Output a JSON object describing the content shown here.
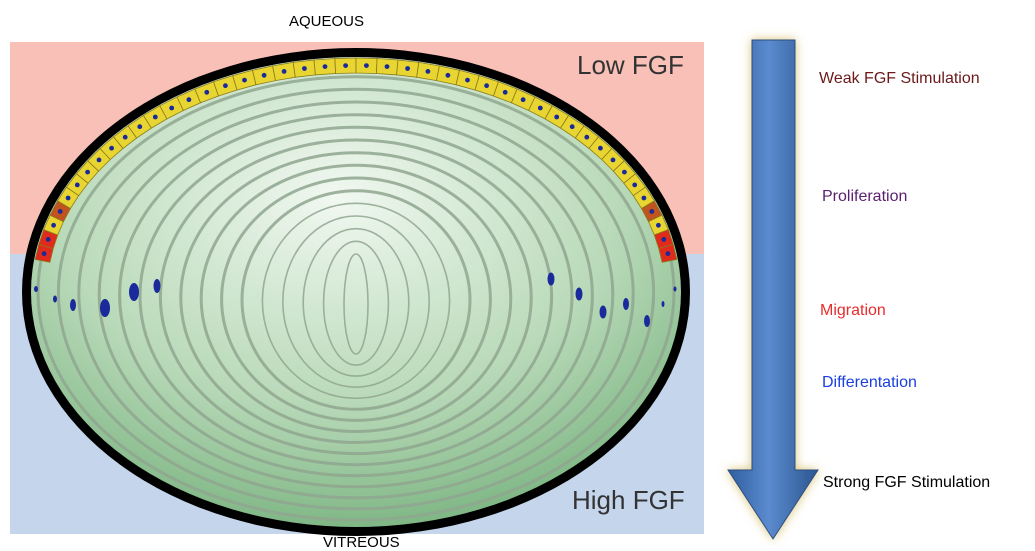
{
  "labels": {
    "aqueous": "AQUEOUS",
    "vitreous": "VITREOUS",
    "low_fgf": "Low FGF",
    "high_fgf": "High FGF"
  },
  "process_steps": [
    {
      "label": "Weak FGF Stimulation",
      "color": "#6b1a1a"
    },
    {
      "label": "Proliferation",
      "color": "#5a1f6e"
    },
    {
      "label": "Migration",
      "color": "#e82b2b"
    },
    {
      "label": "Differentation",
      "color": "#1a3fe0"
    },
    {
      "label": "Strong FGF Stimulation",
      "color": "#000000"
    }
  ],
  "colors": {
    "low_fgf_zone": "#f9c0b8",
    "high_fgf_zone": "#c5d5ec",
    "lens_fiber": "#8fa68f",
    "epithelial_cell": "#e8d531",
    "nucleus": "#1a2a9a",
    "arrow": "#4f7dbf"
  }
}
